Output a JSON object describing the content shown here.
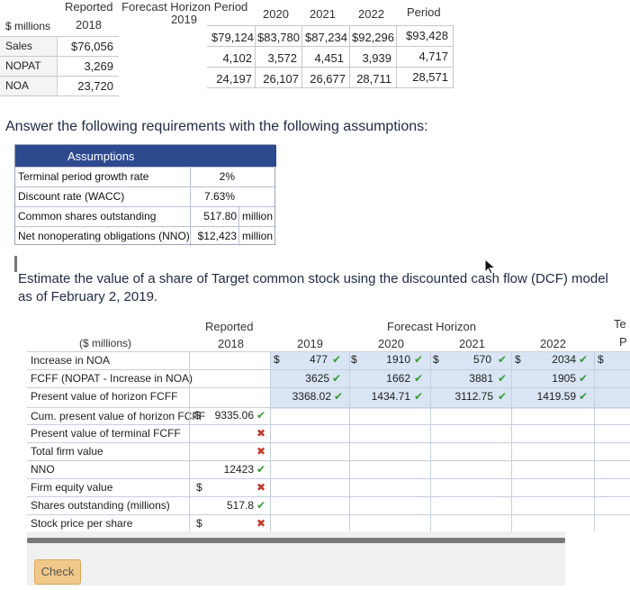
{
  "top_table": {
    "title_reported": "Reported",
    "title_forecast": "Forecast Horizon Period",
    "units_label": "$ millions",
    "year_headers": [
      "2018",
      "2019",
      "2020",
      "2021",
      "2022",
      "Period"
    ],
    "rows": [
      {
        "label": "Sales",
        "values": [
          "$76,056",
          "$79,124",
          "$83,780",
          "$87,234",
          "$92,296",
          "$93,428"
        ]
      },
      {
        "label": "NOPAT",
        "values": [
          "3,269",
          "4,102",
          "3,572",
          "4,451",
          "3,939",
          "4,717"
        ]
      },
      {
        "label": "NOA",
        "values": [
          "23,720",
          "24,197",
          "26,107",
          "26,677",
          "28,711",
          "28,571"
        ]
      }
    ]
  },
  "instruction": "Answer the following requirements with the following assumptions:",
  "assumptions": {
    "header": "Assumptions",
    "rows": [
      {
        "label": "Terminal period growth rate",
        "value": "2%",
        "unit": ""
      },
      {
        "label": "Discount rate (WACC)",
        "value": "7.63%",
        "unit": ""
      },
      {
        "label": "Common shares outstanding",
        "value": "517.80",
        "unit": "million"
      },
      {
        "label": "Net nonoperating obligations (NNO)",
        "value": "$12,423",
        "unit": "million"
      }
    ]
  },
  "question": "Estimate the value of a share of Target common stock using the discounted cash flow (DCF) model as of February 2, 2019.",
  "main_table": {
    "header_reported": "Reported",
    "header_forecast": "Forecast Horizon",
    "header_terminal": "Te",
    "header_terminal_sub": "P",
    "units_label": "($ millions)",
    "years": [
      "2018",
      "2019",
      "2020",
      "2021",
      "2022"
    ],
    "rows": [
      {
        "label": "Increase in NOA",
        "c2019": "477",
        "c2020": "1910",
        "c2021": "570",
        "c2022": "2034"
      },
      {
        "label": "FCFF (NOPAT - Increase in NOA)",
        "c2019": "3625",
        "c2020": "1662",
        "c2021": "3881",
        "c2022": "1905"
      },
      {
        "label": "Present value of horizon FCFF",
        "c2019": "3368.02",
        "c2020": "1434.71",
        "c2021": "3112.75",
        "c2022": "1419.59"
      },
      {
        "label": "Cum. present value of horizon FCFF",
        "c2018": "9335.06"
      },
      {
        "label": "Present value of terminal FCFF"
      },
      {
        "label": "Total firm value"
      },
      {
        "label": "NNO",
        "c2018": "12423"
      },
      {
        "label": "Firm equity value"
      },
      {
        "label": "Shares outstanding (millions)",
        "c2018": "517.8"
      },
      {
        "label": "Stock price per share"
      }
    ],
    "dollar_sign": "$",
    "check_glyph": "✔",
    "x_glyph": "✖"
  },
  "check_button": "Check",
  "colors": {
    "accent_header": "#2e4a8f",
    "band": "#d9e5f4",
    "correct": "#3a9a3a",
    "incorrect": "#c0392b",
    "check_button": "#f0c98a"
  }
}
